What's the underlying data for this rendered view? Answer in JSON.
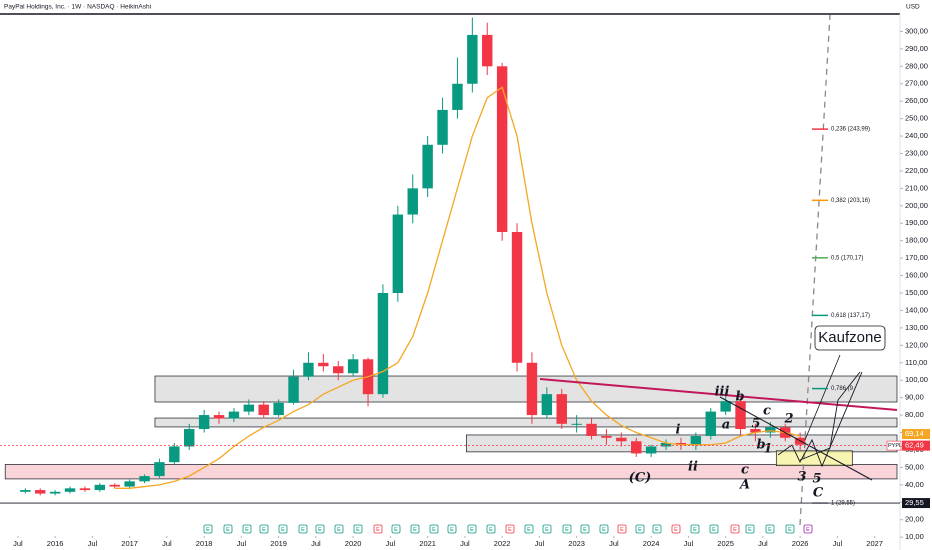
{
  "chart_data": {
    "type": "candlestick",
    "title": "PayPal Holdings, Inc. · 1W · NASDAQ · HeikinAshi",
    "currency": "USD",
    "x": [
      2015.6,
      2015.8,
      2016.0,
      2016.2,
      2016.4,
      2016.6,
      2016.8,
      2017.0,
      2017.2,
      2017.4,
      2017.6,
      2017.8,
      2018.0,
      2018.2,
      2018.4,
      2018.6,
      2018.8,
      2019.0,
      2019.2,
      2019.4,
      2019.6,
      2019.8,
      2020.0,
      2020.2,
      2020.4,
      2020.6,
      2020.8,
      2021.0,
      2021.2,
      2021.4,
      2021.6,
      2021.8,
      2022.0,
      2022.2,
      2022.4,
      2022.6,
      2022.8,
      2023.0,
      2023.2,
      2023.4,
      2023.6,
      2023.8,
      2024.0,
      2024.2,
      2024.4,
      2024.6,
      2024.8,
      2025.0,
      2025.2,
      2025.4,
      2025.6,
      2025.8,
      2026.0
    ],
    "open": [
      36,
      37,
      35,
      36,
      38,
      37,
      40,
      39,
      42,
      45,
      53,
      62,
      72,
      80,
      78,
      82,
      86,
      80,
      87,
      102,
      110,
      108,
      104,
      112,
      92,
      150,
      195,
      210,
      235,
      255,
      270,
      298,
      280,
      185,
      110,
      80,
      92,
      75,
      75,
      68,
      67,
      65,
      58,
      62,
      64,
      63,
      68,
      82,
      88,
      72,
      70,
      73,
      67
    ],
    "high": [
      38,
      38,
      37,
      39,
      39,
      41,
      41,
      43,
      46,
      55,
      64,
      75,
      83,
      82,
      84,
      89,
      88,
      89,
      106,
      116,
      115,
      111,
      115,
      113,
      155,
      200,
      218,
      240,
      262,
      285,
      308,
      305,
      282,
      190,
      116,
      96,
      95,
      80,
      78,
      72,
      70,
      67,
      63,
      66,
      67,
      70,
      84,
      93,
      90,
      75,
      76,
      75,
      70
    ],
    "low": [
      35,
      34,
      34,
      35,
      36,
      36,
      38,
      38,
      41,
      44,
      52,
      60,
      70,
      75,
      76,
      80,
      78,
      79,
      86,
      100,
      105,
      100,
      102,
      85,
      90,
      145,
      190,
      205,
      230,
      250,
      265,
      275,
      180,
      105,
      75,
      78,
      72,
      70,
      66,
      63,
      62,
      56,
      56,
      60,
      60,
      60,
      66,
      80,
      68,
      65,
      67,
      65,
      60
    ],
    "close": [
      37,
      35,
      36,
      38,
      37,
      40,
      39,
      42,
      45,
      53,
      62,
      72,
      80,
      78,
      82,
      86,
      80,
      87,
      102,
      110,
      108,
      104,
      112,
      92,
      150,
      195,
      210,
      235,
      255,
      270,
      298,
      280,
      185,
      110,
      80,
      92,
      75,
      75,
      68,
      67,
      65,
      58,
      62,
      64,
      63,
      68,
      82,
      88,
      72,
      70,
      73,
      67,
      63
    ],
    "up_color": "#089981",
    "down_color": "#f23645",
    "ma": {
      "color": "#f5a623",
      "values": [
        null,
        null,
        null,
        null,
        null,
        null,
        38,
        38,
        39,
        40,
        42,
        45,
        50,
        55,
        62,
        68,
        73,
        77,
        82,
        86,
        92,
        96,
        100,
        102,
        105,
        110,
        125,
        150,
        180,
        210,
        240,
        262,
        268,
        240,
        190,
        150,
        120,
        100,
        88,
        80,
        74,
        70,
        67,
        64,
        63,
        63,
        63,
        64,
        68,
        70,
        71,
        70,
        68
      ]
    },
    "xlim": [
      2015.26,
      2027.3
    ],
    "xticks": [
      {
        "value": 2015.5,
        "label": "Jul"
      },
      2016,
      {
        "value": 2016.5,
        "label": "Jul"
      },
      2017,
      {
        "value": 2017.5,
        "label": "Jul"
      },
      2018,
      {
        "value": 2018.5,
        "label": "Jul"
      },
      2019,
      {
        "value": 2019.5,
        "label": "Jul"
      },
      2020,
      {
        "value": 2020.5,
        "label": "Jul"
      },
      2021,
      {
        "value": 2021.5,
        "label": "Jul"
      },
      2022,
      {
        "value": 2022.5,
        "label": "Jul"
      },
      2023,
      {
        "value": 2023.5,
        "label": "Jul"
      },
      2024,
      {
        "value": 2024.5,
        "label": "Jul"
      },
      2025,
      {
        "value": 2025.5,
        "label": "Jul"
      },
      2026,
      {
        "value": 2026.5,
        "label": "Jul"
      },
      2027
    ],
    "ylim": [
      5.5,
      310
    ],
    "yticks": [
      {
        "value": 300,
        "label": "300,00"
      },
      {
        "value": 290,
        "label": "290,00"
      },
      {
        "value": 280,
        "label": "280,00"
      },
      {
        "value": 270,
        "label": "270,00"
      },
      {
        "value": 260,
        "label": "260,00"
      },
      {
        "value": 250,
        "label": "250,00"
      },
      {
        "value": 240,
        "label": "240,00"
      },
      {
        "value": 230,
        "label": "230,00"
      },
      {
        "value": 220,
        "label": "220,00"
      },
      {
        "value": 210,
        "label": "210,00"
      },
      {
        "value": 200,
        "label": "200,00"
      },
      {
        "value": 190,
        "label": "190,00"
      },
      {
        "value": 180,
        "label": "180,00"
      },
      {
        "value": 170,
        "label": "170,00"
      },
      {
        "value": 160,
        "label": "160,00"
      },
      {
        "value": 150,
        "label": "150,00"
      },
      {
        "value": 140,
        "label": "140,00"
      },
      {
        "value": 130,
        "label": "130,00"
      },
      {
        "value": 120,
        "label": "120,00"
      },
      {
        "value": 110,
        "label": "110,00"
      },
      {
        "value": 100,
        "label": "100,00"
      },
      {
        "value": 90,
        "label": "90,00"
      },
      {
        "value": 80,
        "label": "80,00"
      },
      {
        "value": 70,
        "label": "70,00"
      },
      {
        "value": 60,
        "label": "60,00"
      },
      {
        "value": 50,
        "label": "50,00"
      },
      {
        "value": 40,
        "label": "40,00"
      },
      {
        "value": 30,
        "label": "30,00"
      },
      {
        "value": 20,
        "label": "20,00"
      },
      {
        "value": 10,
        "label": "10,00"
      }
    ],
    "zones": [
      {
        "low": 87.5,
        "high": 102.4,
        "xrange": [
          2017.34,
          2027.3
        ],
        "color": "#d9d9d9"
      },
      {
        "low": 73.2,
        "high": 78.3,
        "xrange": [
          2017.34,
          2027.3
        ],
        "color": "#d9d9d9"
      },
      {
        "low": 58.9,
        "high": 68.6,
        "xrange": [
          2021.52,
          2027.3
        ],
        "color": "#d9d9d9"
      },
      {
        "low": 43.4,
        "high": 51.7,
        "xrange": [
          2015.33,
          2027.3
        ],
        "color": "#f7c5cc"
      },
      {
        "low": 51,
        "high": 59.5,
        "xrange": [
          2025.68,
          2026.7
        ],
        "color": "#f6f29a"
      }
    ],
    "fib_levels": [
      {
        "price": 243.99,
        "label": "0,236 (243,99)",
        "color": "#f23645"
      },
      {
        "price": 203.16,
        "label": "0,382 (203,16)",
        "color": "#ff9800"
      },
      {
        "price": 170.17,
        "label": "0,5 (170,17)",
        "color": "#4caf50"
      },
      {
        "price": 137.17,
        "label": "0,618 (137,17)",
        "color": "#089981"
      },
      {
        "price": 95.2,
        "label": "0,786 (9",
        "color": "#089981"
      },
      {
        "price": 29.55,
        "label": "1 (29,55)",
        "color": "#9598a1"
      }
    ],
    "price_tags": [
      {
        "value": 69.14,
        "label": "69,14",
        "color": "#f5a623"
      },
      {
        "value": 62.49,
        "label": "62,49",
        "color": "#f23645",
        "symbol": "PYPL"
      },
      {
        "value": 29.55,
        "label": "29,55",
        "color": "#131722"
      }
    ],
    "waves": [
      "iii",
      "b",
      "a",
      "c",
      "5",
      "2",
      "i",
      "ii",
      "(C)",
      "c",
      "A",
      "b",
      "1",
      "3",
      "5",
      "C"
    ],
    "annotation": "Kaufzone",
    "event": "E"
  }
}
